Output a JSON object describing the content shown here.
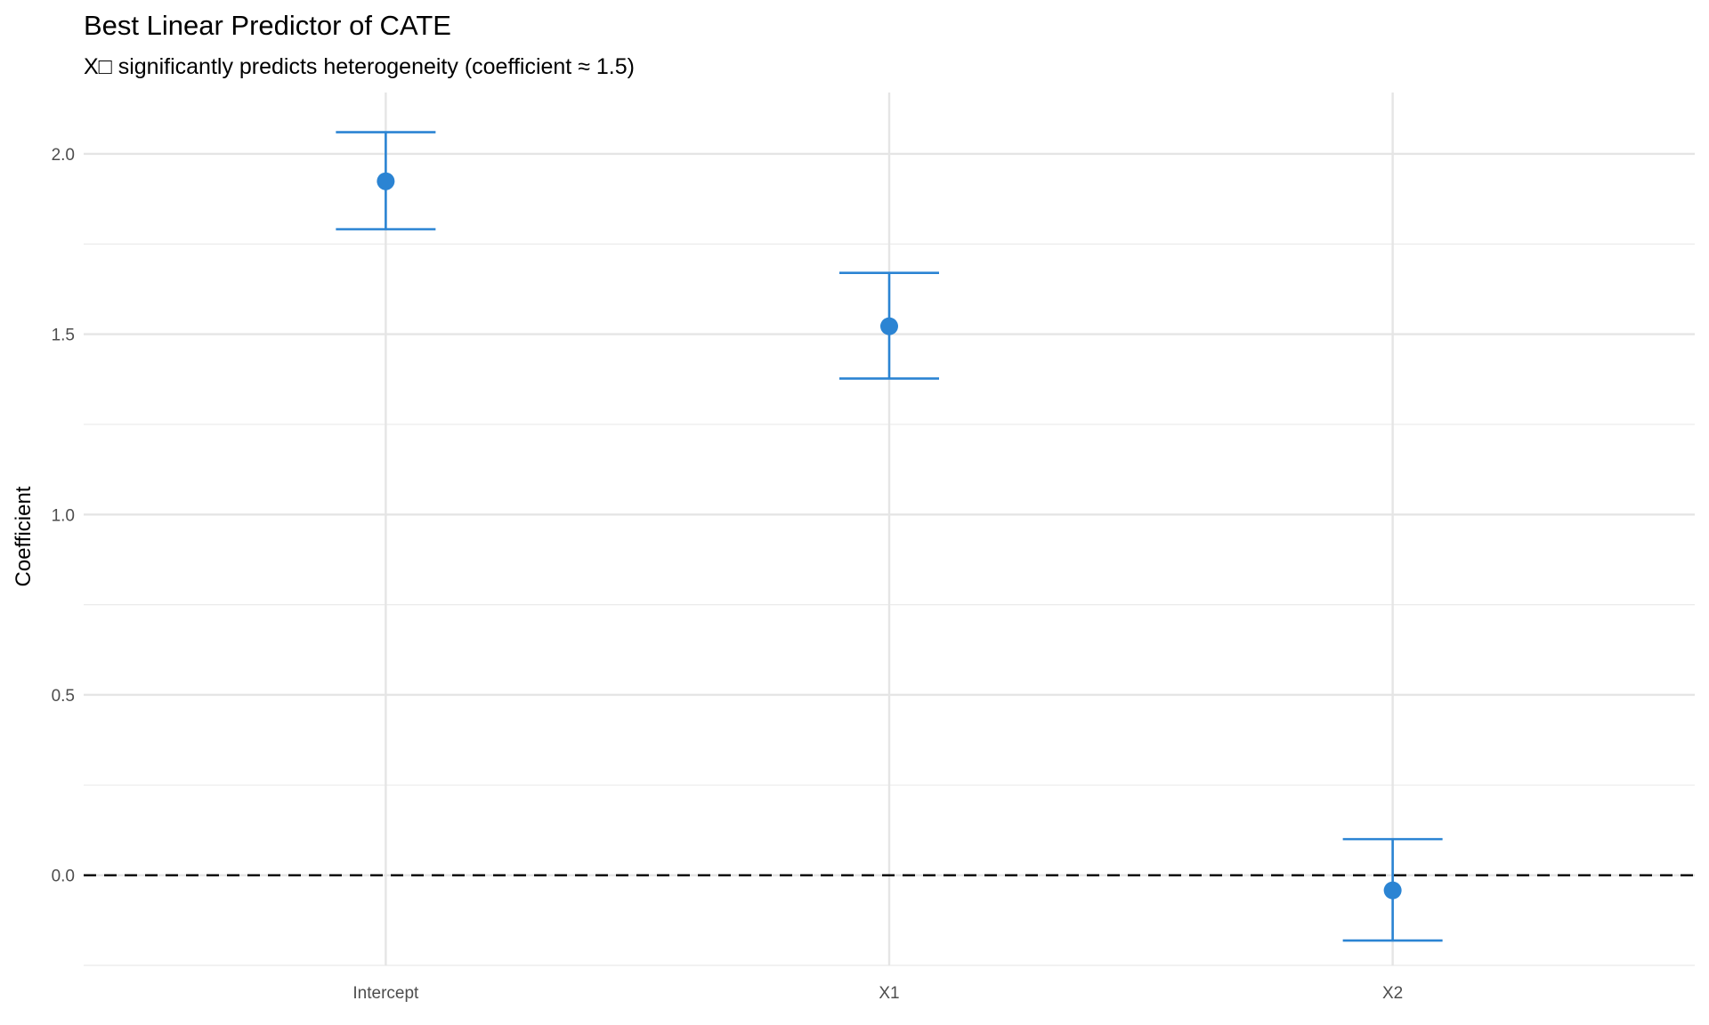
{
  "chart_data": {
    "type": "errorbar",
    "title": "Best Linear Predictor of CATE",
    "subtitle": "X□ significantly predicts heterogeneity (coefficient ≈ 1.5)",
    "xlabel": "",
    "ylabel": "Coefficient",
    "categories": [
      "Intercept",
      "X1",
      "X2"
    ],
    "estimates": [
      1.924,
      1.522,
      -0.042
    ],
    "lower": [
      1.791,
      1.377,
      -0.181
    ],
    "upper": [
      2.06,
      1.67,
      0.1
    ],
    "ylim": [
      -0.25,
      2.17
    ],
    "yticks": [
      0.0,
      0.5,
      1.0,
      1.5,
      2.0
    ],
    "ytick_labels": [
      "0.0",
      "0.5",
      "1.0",
      "1.5",
      "2.0"
    ],
    "reference_line": 0,
    "grid": true,
    "legend": "none",
    "colors": {
      "point": "#2b84d3",
      "reference": "#000000",
      "grid": "#ebebeb"
    }
  }
}
